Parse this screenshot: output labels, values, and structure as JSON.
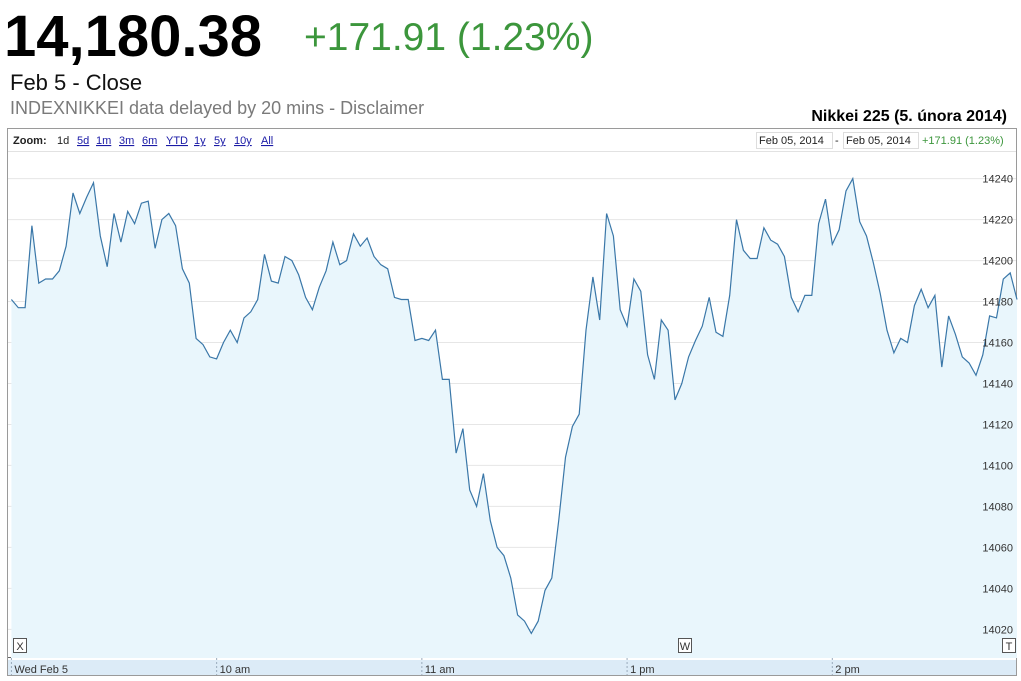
{
  "header": {
    "price": "14,180.38",
    "change": "+171.91 (1.23%)",
    "date": "Feb 5 - Close",
    "source": "INDEXNIKKEI data delayed by 20 mins - Disclaimer"
  },
  "chart_data": {
    "type": "area",
    "title": "Nikkei 225 (5. února 2014)",
    "zoom_label": "Zoom:",
    "zoom_options": [
      "1d",
      "5d",
      "1m",
      "3m",
      "6m",
      "YTD",
      "1y",
      "5y",
      "10y",
      "All"
    ],
    "range_start": "Feb 05, 2014",
    "range_sep": "-",
    "range_end": "Feb 05, 2014",
    "range_change": "+171.91 (1.23%)",
    "flags": [
      "X",
      "W",
      "T"
    ],
    "color": "#3a77a8",
    "fill_color": "#e9f6fc",
    "grid": true,
    "xlim": [
      -1,
      294
    ],
    "xticks": [
      {
        "value": 0,
        "label": "Wed Feb 5"
      },
      {
        "value": 60,
        "label": "10 am"
      },
      {
        "value": 120,
        "label": "11 am"
      },
      {
        "value": 180,
        "label": "1 pm"
      },
      {
        "value": 240,
        "label": "2 pm"
      }
    ],
    "ylim": [
      14006,
      14253
    ],
    "yticks": [
      14020,
      14040,
      14060,
      14080,
      14100,
      14120,
      14140,
      14160,
      14180,
      14200,
      14220,
      14240
    ],
    "x": [
      0,
      2,
      4,
      6,
      8,
      10,
      12,
      14,
      16,
      18,
      20,
      22,
      24,
      26,
      28,
      30,
      32,
      34,
      36,
      38,
      40,
      42,
      44,
      46,
      48,
      50,
      52,
      54,
      56,
      58,
      60,
      62,
      64,
      66,
      68,
      70,
      72,
      74,
      76,
      78,
      80,
      82,
      84,
      86,
      88,
      90,
      92,
      94,
      96,
      98,
      100,
      102,
      104,
      106,
      108,
      110,
      112,
      114,
      116,
      118,
      120,
      122,
      124,
      126,
      128,
      130,
      132,
      134,
      136,
      138,
      140,
      142,
      144,
      146,
      148,
      150,
      152,
      154,
      156,
      158,
      160,
      162,
      164,
      166,
      168,
      170,
      172,
      174,
      176,
      178,
      180,
      182,
      184,
      186,
      188,
      190,
      192,
      194,
      196,
      198,
      200,
      202,
      204,
      206,
      208,
      210,
      212,
      214,
      216,
      218,
      220,
      222,
      224,
      226,
      228,
      230,
      232,
      234,
      236,
      238,
      240,
      242,
      244,
      246,
      248,
      250,
      252,
      254,
      256,
      258,
      260,
      262,
      264,
      266,
      268,
      270,
      272,
      274,
      276,
      278,
      280,
      282,
      284,
      286,
      288,
      290,
      292,
      294
    ],
    "values": [
      14181,
      14177,
      14177,
      14217,
      14189,
      14191,
      14191,
      14195,
      14207,
      14233,
      14223,
      14231,
      14238,
      14212,
      14197,
      14223,
      14209,
      14224,
      14218,
      14228,
      14229,
      14206,
      14220,
      14223,
      14217,
      14196,
      14189,
      14162,
      14159,
      14153,
      14152,
      14160,
      14166,
      14160,
      14172,
      14175,
      14181,
      14203,
      14190,
      14189,
      14202,
      14200,
      14193,
      14182,
      14176,
      14187,
      14195,
      14209,
      14198,
      14200,
      14213,
      14207,
      14211,
      14202,
      14198,
      14196,
      14182,
      14181,
      14181,
      14161,
      14162,
      14161,
      14166,
      14142,
      14142,
      14106,
      14118,
      14088,
      14080,
      14096,
      14073,
      14060,
      14056,
      14045,
      14027,
      14024,
      14018,
      14024,
      14039,
      14045,
      14073,
      14104,
      14119,
      14125,
      14166,
      14192,
      14171,
      14223,
      14212,
      14176,
      14168,
      14191,
      14185,
      14154,
      14142,
      14171,
      14166,
      14132,
      14140,
      14153,
      14161,
      14168,
      14182,
      14165,
      14163,
      14183,
      14220,
      14205,
      14201,
      14201,
      14216,
      14210,
      14208,
      14202,
      14182,
      14175,
      14183,
      14183,
      14218,
      14230,
      14208,
      14215,
      14234,
      14240,
      14219,
      14212,
      14199,
      14184,
      14166,
      14155,
      14162,
      14160,
      14178,
      14186,
      14177,
      14183,
      14148,
      14173,
      14164,
      14153,
      14150,
      14144,
      14154,
      14173,
      14172,
      14191,
      14194,
      14181
    ]
  }
}
